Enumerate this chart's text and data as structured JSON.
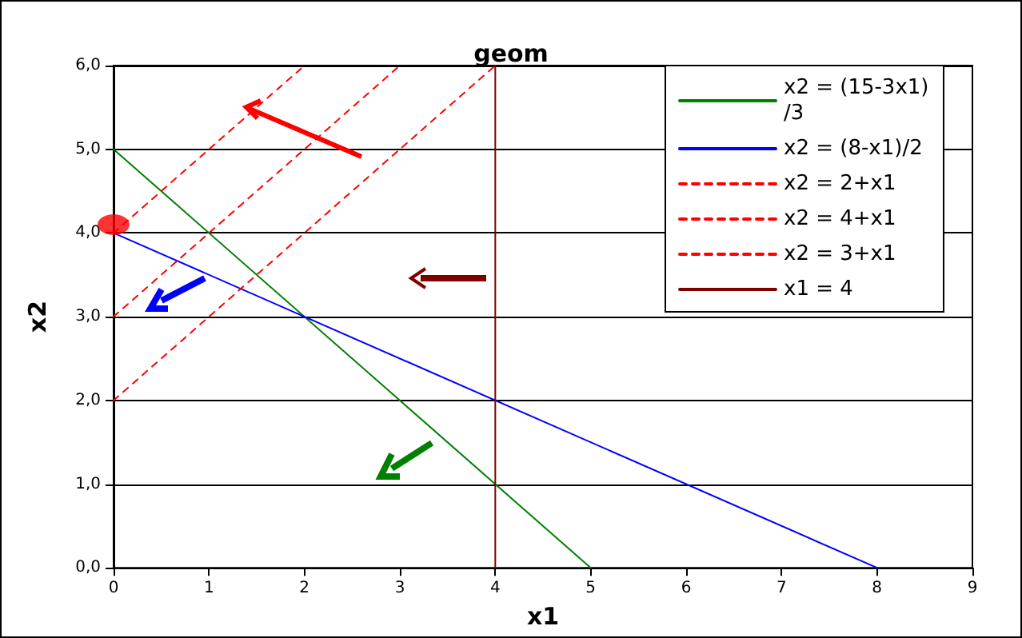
{
  "chart_data": {
    "type": "line",
    "title": "geom",
    "xlabel": "x1",
    "ylabel": "x2",
    "xlim": [
      0,
      9
    ],
    "xticks": [
      0,
      1,
      2,
      3,
      4,
      5,
      6,
      7,
      8,
      9
    ],
    "ylim": [
      0,
      6
    ],
    "yticks": [
      {
        "value": 0,
        "label": "0,0"
      },
      {
        "value": 1,
        "label": "1,0"
      },
      {
        "value": 2,
        "label": "2,0"
      },
      {
        "value": 3,
        "label": "3,0"
      },
      {
        "value": 4,
        "label": "4,0"
      },
      {
        "value": 5,
        "label": "5,0"
      },
      {
        "value": 6,
        "label": "6,0"
      }
    ],
    "grid": "y",
    "legend": "top right",
    "series": [
      {
        "name": "x2 = (15-3x1)/3",
        "color": "#008000",
        "marker": "none",
        "x": [
          0,
          5
        ],
        "values": [
          5,
          0
        ]
      },
      {
        "name": "x2 = (8-x1)/2",
        "color": "#0000ff",
        "marker": "none",
        "x": [
          0,
          8
        ],
        "values": [
          4,
          0
        ]
      },
      {
        "name": "x2 = 2+x1",
        "color": "#ff0000",
        "marker": "none",
        "line_style": "dashed",
        "x": [
          0,
          4
        ],
        "values": [
          2,
          6
        ]
      },
      {
        "name": "x2 = 4+x1",
        "color": "#ff0000",
        "marker": "none",
        "line_style": "dashed",
        "x": [
          0,
          2
        ],
        "values": [
          4,
          6
        ]
      },
      {
        "name": "x2 = 3+x1",
        "color": "#ff0000",
        "marker": "none",
        "line_style": "dashed",
        "x": [
          0,
          3
        ],
        "values": [
          3,
          6
        ]
      },
      {
        "name": "x1 = 4",
        "color": "#800000",
        "marker": "none",
        "x": [
          4,
          4
        ],
        "values": [
          0,
          6
        ]
      },
      {
        "type": "scatter",
        "color": "#ff0000",
        "marker": "circle",
        "x": [
          0
        ],
        "values": [
          4.1
        ]
      }
    ]
  }
}
